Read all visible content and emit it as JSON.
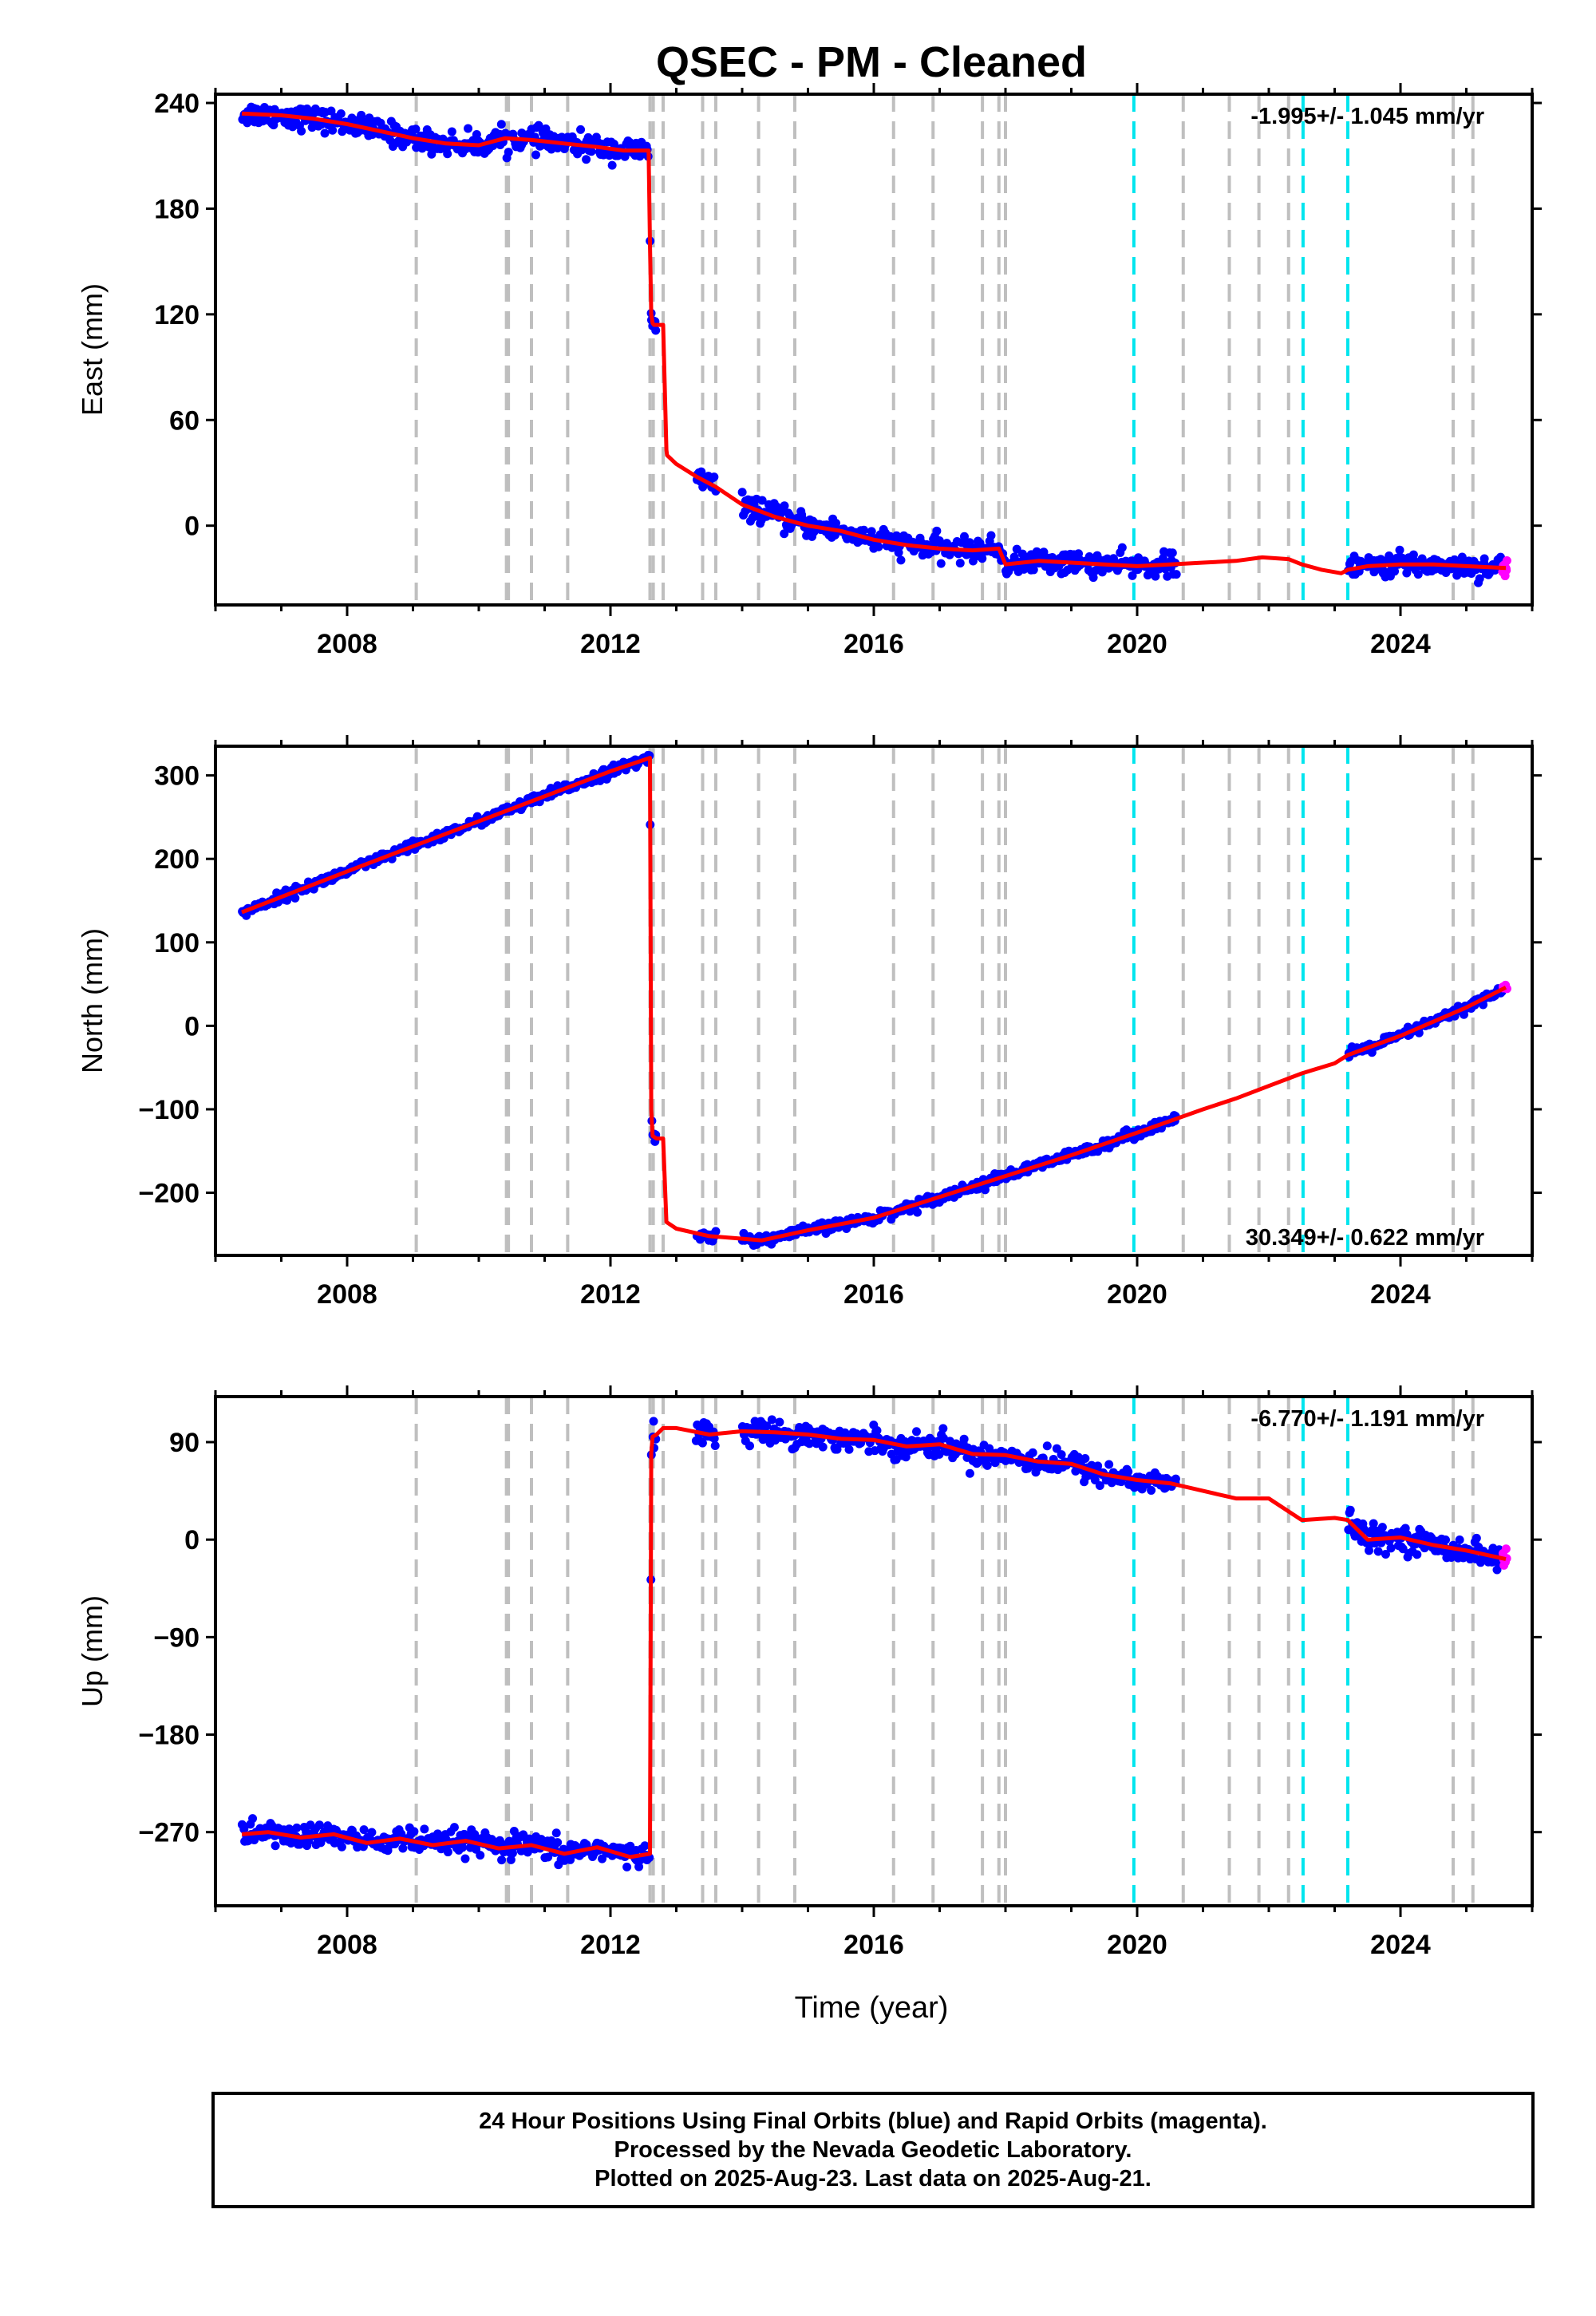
{
  "title": "QSEC  - PM - Cleaned",
  "xlabel": "Time (year)",
  "colors": {
    "final_orbits": "#0000ff",
    "rapid_orbits": "#ff00ff",
    "model": "#ff0000",
    "equipment_change": "#bfbfbf",
    "earthquake": "#00e5ee"
  },
  "chart_data": [
    {
      "type": "scatter",
      "panel": "east",
      "ylabel": "East (mm)",
      "rate_label": "-1.995+/- 1.045 mm/yr",
      "xlim": [
        2006.0,
        2026.0
      ],
      "ylim": [
        -45,
        245
      ],
      "xticks": [
        2008,
        2012,
        2016,
        2020,
        2024
      ],
      "yticks": [
        240,
        180,
        120,
        60,
        0
      ],
      "ytick_labels": [
        "240",
        "180",
        "120",
        "60",
        "0"
      ],
      "series": [
        {
          "name": "model",
          "x": [
            2006.4,
            2007.0,
            2007.5,
            2008.0,
            2008.5,
            2009.0,
            2009.5,
            2010.0,
            2010.4,
            2010.8,
            2011.3,
            2011.8,
            2012.2,
            2012.58,
            2012.6,
            2012.62,
            2012.64,
            2012.66,
            2012.7,
            2012.75,
            2012.8,
            2012.85,
            2012.86,
            2013.0,
            2013.3,
            2013.6,
            2014.0,
            2014.5,
            2015.0,
            2015.5,
            2016.0,
            2016.5,
            2017.0,
            2017.5,
            2017.9,
            2018.0,
            2018.5,
            2019.0,
            2019.5,
            2020.0,
            2020.5,
            2021.0,
            2021.5,
            2021.9,
            2022.3,
            2022.5,
            2022.8,
            2023.1,
            2023.2,
            2023.5,
            2024.0,
            2024.5,
            2025.0,
            2025.6
          ],
          "y": [
            234,
            233,
            231,
            228,
            224,
            220,
            217,
            216,
            220,
            219,
            217,
            215,
            213,
            213,
            160,
            120,
            115,
            114,
            114,
            114,
            114,
            43,
            40,
            35,
            28,
            22,
            12,
            5,
            0,
            -3,
            -8,
            -11,
            -13,
            -14,
            -13,
            -22,
            -20,
            -21,
            -22,
            -23,
            -22,
            -21,
            -20,
            -18,
            -19,
            -22,
            -25,
            -27,
            -25,
            -23,
            -22,
            -22,
            -23,
            -24
          ]
        },
        {
          "name": "final",
          "x_ranges": [
            [
              2006.4,
              2012.62
            ],
            [
              2012.62,
              2012.7
            ],
            [
              2013.3,
              2013.6
            ],
            [
              2014.0,
              2020.6
            ],
            [
              2023.2,
              2025.55
            ]
          ],
          "count": 900,
          "noise": 3.2
        },
        {
          "name": "rapid",
          "x_ranges": [
            [
              2025.55,
              2025.62
            ]
          ],
          "count": 10,
          "noise": 2.5
        }
      ]
    },
    {
      "type": "scatter",
      "panel": "north",
      "ylabel": "North (mm)",
      "rate_label": "30.349+/- 0.622 mm/yr",
      "xlim": [
        2006.0,
        2026.0
      ],
      "ylim": [
        -275,
        335
      ],
      "xticks": [
        2008,
        2012,
        2016,
        2020,
        2024
      ],
      "yticks": [
        300,
        200,
        100,
        0,
        -100,
        -200
      ],
      "ytick_labels": [
        "300",
        "200",
        "100",
        "0",
        "−100",
        "−200"
      ],
      "series": [
        {
          "name": "model",
          "x": [
            2006.4,
            2008.0,
            2010.0,
            2012.0,
            2012.6,
            2012.62,
            2012.64,
            2012.7,
            2012.8,
            2012.85,
            2013.0,
            2013.5,
            2014.0,
            2014.3,
            2015.0,
            2016.0,
            2017.0,
            2018.0,
            2019.0,
            2020.0,
            2021.0,
            2021.5,
            2022.0,
            2022.5,
            2023.0,
            2023.2,
            2024.0,
            2025.0,
            2025.6
          ],
          "y": [
            136,
            185,
            245,
            305,
            321,
            -100,
            -132,
            -135,
            -135,
            -235,
            -243,
            -252,
            -255,
            -257,
            -245,
            -230,
            -205,
            -180,
            -155,
            -128,
            -100,
            -87,
            -72,
            -57,
            -45,
            -35,
            -12,
            22,
            46
          ]
        },
        {
          "name": "final",
          "x_ranges": [
            [
              2006.4,
              2012.62
            ],
            [
              2012.62,
              2012.7
            ],
            [
              2013.3,
              2013.6
            ],
            [
              2014.0,
              2020.6
            ],
            [
              2023.2,
              2025.55
            ]
          ],
          "count": 900,
          "noise": 3.0
        },
        {
          "name": "rapid",
          "x_ranges": [
            [
              2025.55,
              2025.62
            ]
          ],
          "count": 10,
          "noise": 2.0
        }
      ]
    },
    {
      "type": "scatter",
      "panel": "up",
      "ylabel": "Up (mm)",
      "rate_label": "-6.770+/- 1.191 mm/yr",
      "xlim": [
        2006.0,
        2026.0
      ],
      "ylim": [
        -338,
        132
      ],
      "xticks": [
        2008,
        2012,
        2016,
        2020,
        2024
      ],
      "yticks": [
        90,
        0,
        -90,
        -180,
        -270
      ],
      "ytick_labels": [
        "90",
        "0",
        "−90",
        "−180",
        "−270"
      ],
      "series": [
        {
          "name": "model",
          "x": [
            2006.4,
            2006.8,
            2007.3,
            2007.8,
            2008.3,
            2008.8,
            2009.3,
            2009.8,
            2010.3,
            2010.8,
            2011.3,
            2011.8,
            2012.3,
            2012.6,
            2012.62,
            2012.64,
            2012.7,
            2012.8,
            2013.0,
            2013.5,
            2014.0,
            2014.5,
            2015.0,
            2015.5,
            2016.0,
            2016.5,
            2017.0,
            2017.5,
            2018.0,
            2018.5,
            2019.0,
            2019.5,
            2020.0,
            2020.5,
            2021.0,
            2021.5,
            2022.0,
            2022.5,
            2023.0,
            2023.2,
            2023.5,
            2024.0,
            2024.5,
            2025.0,
            2025.6
          ],
          "y": [
            -272,
            -270,
            -275,
            -272,
            -280,
            -276,
            -282,
            -278,
            -285,
            -282,
            -290,
            -284,
            -293,
            -290,
            80,
            95,
            97,
            103,
            103,
            97,
            100,
            99,
            97,
            93,
            92,
            86,
            88,
            79,
            78,
            72,
            70,
            60,
            55,
            52,
            45,
            38,
            38,
            18,
            20,
            18,
            0,
            2,
            -5,
            -10,
            -18
          ]
        },
        {
          "name": "final",
          "x_ranges": [
            [
              2006.4,
              2012.62
            ],
            [
              2012.62,
              2012.7
            ],
            [
              2013.3,
              2013.6
            ],
            [
              2014.0,
              2020.6
            ],
            [
              2023.2,
              2025.55
            ]
          ],
          "count": 900,
          "noise": 5.5
        },
        {
          "name": "rapid",
          "x_ranges": [
            [
              2025.55,
              2025.62
            ]
          ],
          "count": 10,
          "noise": 5
        }
      ]
    }
  ],
  "equipment_changes": [
    2009.05,
    2010.42,
    2010.45,
    2010.8,
    2011.35,
    2012.6,
    2012.65,
    2012.8,
    2013.4,
    2013.6,
    2014.25,
    2014.8,
    2016.3,
    2016.9,
    2017.65,
    2017.9,
    2018.0,
    2020.7,
    2021.4,
    2021.85,
    2022.3,
    2024.8,
    2025.1
  ],
  "earthquakes": [
    2019.95,
    2022.52,
    2023.2
  ],
  "footer": {
    "line1": "24 Hour Positions Using Final Orbits (blue) and Rapid Orbits (magenta).",
    "line2": "Processed by the Nevada Geodetic Laboratory.",
    "line3": "Plotted on 2025-Aug-23. Last data on 2025-Aug-21."
  }
}
